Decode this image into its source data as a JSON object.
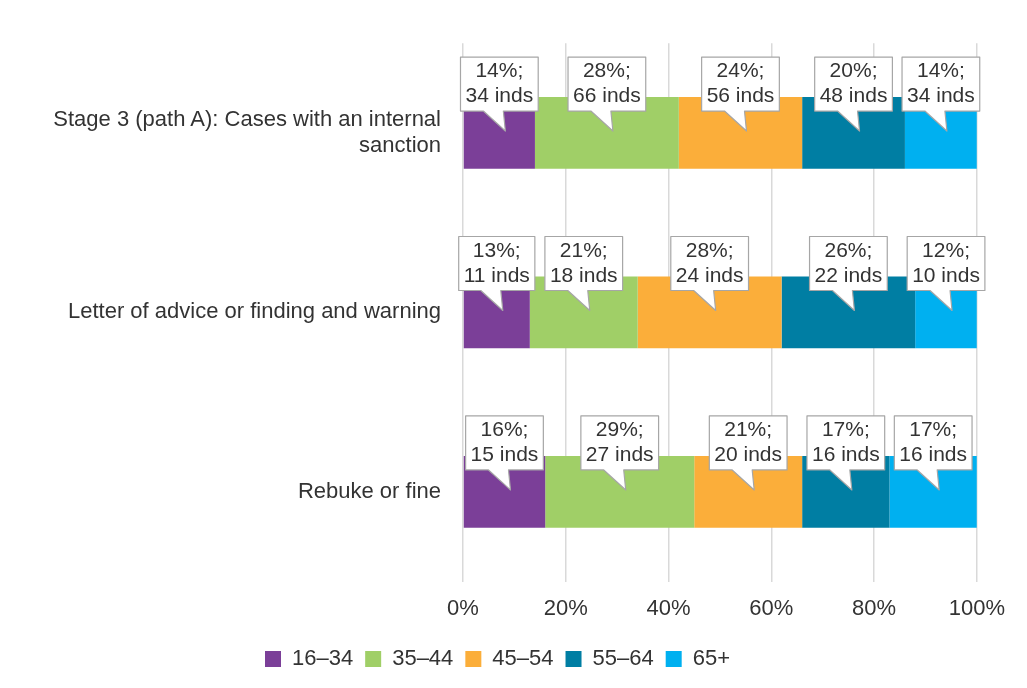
{
  "chart_data": {
    "type": "bar",
    "orientation": "horizontal",
    "stacked": true,
    "categories": [
      "Stage 3 (path A): Cases with an internal sanction",
      "Letter of advice or finding and warning",
      "Rebuke or fine"
    ],
    "series": [
      {
        "name": "16–34",
        "color": "#7b3f98",
        "values": [
          14,
          13,
          16
        ],
        "value_labels": [
          "14%; 34 inds",
          "13%; 11 inds",
          "16%; 15 inds"
        ]
      },
      {
        "name": "35–44",
        "color": "#a0cf67",
        "values": [
          28,
          21,
          29
        ],
        "value_labels": [
          "28%; 66 inds",
          "21%; 18 inds",
          "29%; 27 inds"
        ]
      },
      {
        "name": "45–54",
        "color": "#fbae3a",
        "values": [
          24,
          28,
          21
        ],
        "value_labels": [
          "24%; 56 inds",
          "28%; 24 inds",
          "21%; 20 inds"
        ]
      },
      {
        "name": "55–64",
        "color": "#007ea3",
        "values": [
          20,
          26,
          17
        ],
        "value_labels": [
          "20%; 48 inds",
          "26%; 22 inds",
          "17%; 16 inds"
        ]
      },
      {
        "name": "65+",
        "color": "#00b0f0",
        "values": [
          14,
          12,
          17
        ],
        "value_labels": [
          "14%; 34 inds",
          "12%; 10 inds",
          "17%; 16 inds"
        ]
      }
    ],
    "xlim": [
      0,
      100
    ],
    "xticks": [
      {
        "value": 0,
        "label": "0%"
      },
      {
        "value": 20,
        "label": "20%"
      },
      {
        "value": 40,
        "label": "40%"
      },
      {
        "value": 60,
        "label": "60%"
      },
      {
        "value": 80,
        "label": "80%"
      },
      {
        "value": 100,
        "label": "100%"
      }
    ],
    "grid": "x",
    "legend": "bottom"
  }
}
